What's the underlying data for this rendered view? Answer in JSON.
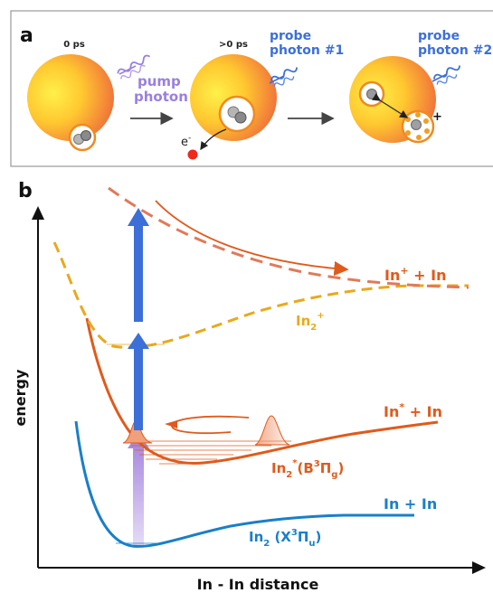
{
  "panel_a": {
    "letter": "a",
    "stage1": {
      "time": "0 ps",
      "photon_line1": "pump",
      "photon_line2": "photon"
    },
    "stage2": {
      "time": ">0 ps",
      "photon_line1": "probe",
      "photon_line2": "photon #1",
      "electron_base": "e",
      "electron_sup": "-"
    },
    "stage3": {
      "photon_line1": "probe",
      "photon_line2": "photon #2",
      "ion_sign": "+"
    }
  },
  "panel_b": {
    "letter": "b",
    "ylabel": "energy",
    "xlabel": "In - In distance",
    "curves": {
      "ion_asymptote": {
        "base": "In",
        "sup": "+",
        "tail": " + In"
      },
      "ion_dimer": {
        "base": "In",
        "sub": "2",
        "sup": "+"
      },
      "excited_asymptote": {
        "base": "In",
        "sup": "*",
        "tail": " + In"
      },
      "excited_dimer": {
        "base": "In",
        "sub": "2",
        "sup": "*",
        "state_open": "(B",
        "state_sup": "3",
        "state_pi": "Π",
        "state_sub": "g",
        "state_close": ")"
      },
      "ground_asymptote": {
        "text": "In + In"
      },
      "ground_dimer": {
        "base": "In",
        "sub": "2",
        "state_open": " (X",
        "state_sup": "3",
        "state_pi": "Π",
        "state_sub": "u",
        "state_close": ")"
      }
    }
  },
  "colors": {
    "ground": "#1a7fc8",
    "excited": "#e05a1c",
    "ion_dimer": "#e8a91c",
    "ion_repulsive": "#e07a5a",
    "pump_arrow": "#b79be8",
    "probe_arrow": "#3c6fd8",
    "probe_text": "#3c6fd8",
    "pump_text": "#9a7fe0"
  }
}
